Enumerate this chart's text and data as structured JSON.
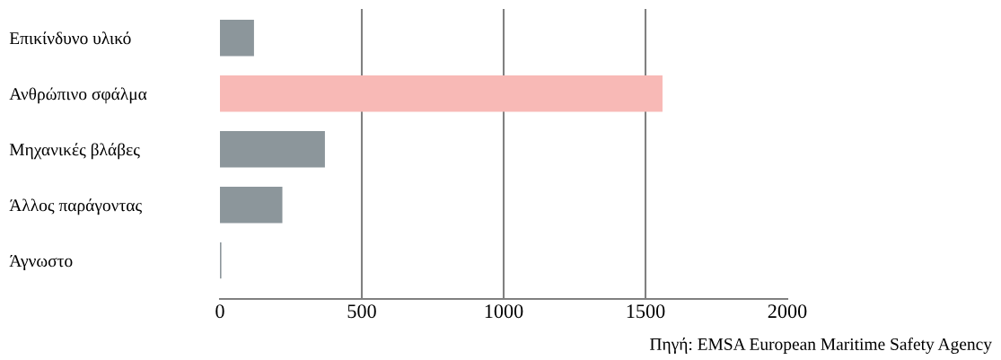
{
  "chart_data": {
    "type": "bar",
    "orientation": "horizontal",
    "categories": [
      "Επικίνδυνο υλικό",
      "Ανθρώπινο σφάλμα",
      "Μηχανικές βλάβες",
      "Άλλος παράγοντας",
      "Άγνωστο"
    ],
    "values": [
      120,
      1560,
      370,
      220,
      5
    ],
    "colors": [
      "#8c969b",
      "#f8b9b6",
      "#8c969b",
      "#8c969b",
      "#8c969b"
    ],
    "xlim": [
      0,
      2000
    ],
    "xticks": [
      0,
      500,
      1000,
      1500,
      2000
    ],
    "grid": "x",
    "annotations": [
      "Πηγή: EMSA European Maritime Safety Agency"
    ]
  }
}
